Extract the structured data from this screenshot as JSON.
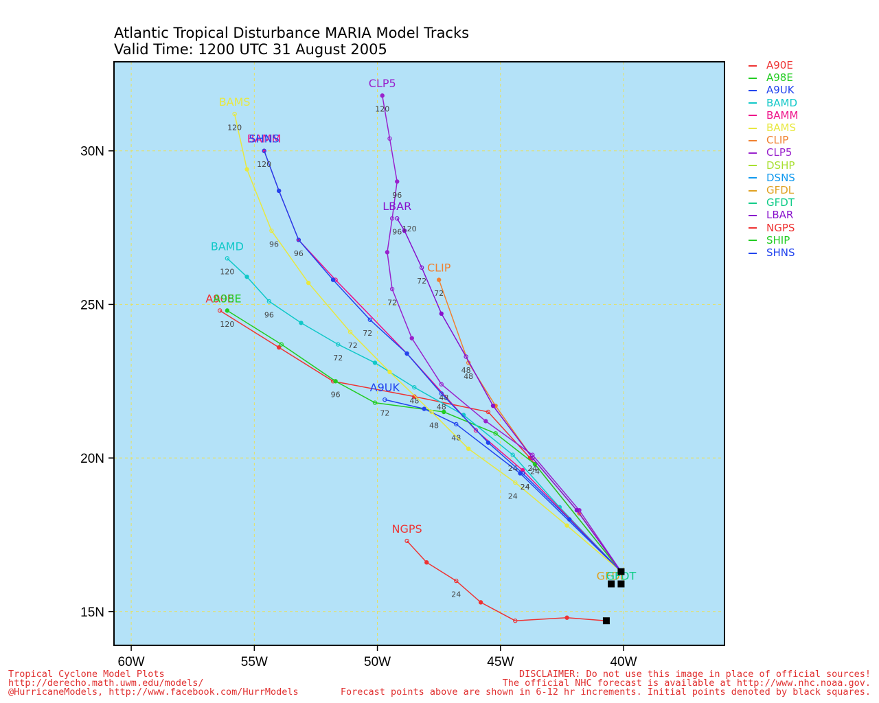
{
  "title": {
    "line1": "Atlantic Tropical Disturbance MARIA Model Tracks",
    "line2": "Valid Time: 1200 UTC 31 August 2005"
  },
  "chart_data": {
    "type": "map-tracks",
    "x_ticks": [
      {
        "lon": -60,
        "label": "60W"
      },
      {
        "lon": -55,
        "label": "55W"
      },
      {
        "lon": -50,
        "label": "50W"
      },
      {
        "lon": -45,
        "label": "45W"
      },
      {
        "lon": -40,
        "label": "40W"
      }
    ],
    "y_ticks": [
      {
        "lat": 15,
        "label": "15N"
      },
      {
        "lat": 20,
        "label": "20N"
      },
      {
        "lat": 25,
        "label": "25N"
      },
      {
        "lat": 30,
        "label": "30N"
      }
    ],
    "lon_range": [
      -60.7,
      -35.9
    ],
    "lat_range": [
      13.9,
      32.9
    ],
    "grid": true,
    "ocean_color": "#b4e2f8",
    "models": [
      {
        "name": "A90E",
        "color": "#ee3333",
        "points": [
          [
            -40.1,
            16.3
          ],
          [
            -43.8,
            20.0
          ],
          [
            -45.5,
            21.5
          ],
          [
            -48.5,
            22.0
          ],
          [
            -51.8,
            22.5
          ],
          [
            -54.0,
            23.6
          ],
          [
            -56.4,
            24.8
          ]
        ],
        "hour_labels": [],
        "end_label": "A90E"
      },
      {
        "name": "A98E",
        "color": "#22cc22",
        "points": [
          [
            -40.1,
            16.3
          ],
          [
            -43.6,
            19.8
          ],
          [
            -45.2,
            20.8
          ],
          [
            -47.3,
            21.5
          ],
          [
            -50.1,
            21.8
          ],
          [
            -51.7,
            22.5
          ],
          [
            -53.9,
            23.7
          ],
          [
            -56.1,
            24.8
          ]
        ],
        "hour_labels": [
          {
            "lon": -51.7,
            "lat": 22.2,
            "text": "96"
          },
          {
            "lon": -56.1,
            "lat": 24.5,
            "text": "120"
          }
        ],
        "end_label": "A98E"
      },
      {
        "name": "A9UK",
        "color": "#2244ee",
        "points": [
          [
            -40.1,
            16.3
          ],
          [
            -44.2,
            19.5
          ],
          [
            -46.8,
            21.1
          ],
          [
            -48.1,
            21.6
          ],
          [
            -49.7,
            21.9
          ]
        ],
        "hour_labels": [
          {
            "lon": -44.0,
            "lat": 19.2,
            "text": "24"
          },
          {
            "lon": -46.8,
            "lat": 20.8,
            "text": "48"
          },
          {
            "lon": -49.7,
            "lat": 21.6,
            "text": "72"
          }
        ],
        "end_label": "A9UK"
      },
      {
        "name": "BAMD",
        "color": "#11c8c8",
        "points": [
          [
            -40.1,
            16.3
          ],
          [
            -42.6,
            18.4
          ],
          [
            -44.5,
            20.1
          ],
          [
            -46.5,
            21.4
          ],
          [
            -48.5,
            22.3
          ],
          [
            -50.1,
            23.1
          ],
          [
            -51.6,
            23.7
          ],
          [
            -53.1,
            24.4
          ],
          [
            -54.4,
            25.1
          ],
          [
            -55.3,
            25.9
          ],
          [
            -56.1,
            26.5
          ]
        ],
        "hour_labels": [
          {
            "lon": -44.5,
            "lat": 19.8,
            "text": "24"
          },
          {
            "lon": -48.5,
            "lat": 22.0,
            "text": "48"
          },
          {
            "lon": -51.6,
            "lat": 23.4,
            "text": "72"
          },
          {
            "lon": -54.4,
            "lat": 24.8,
            "text": "96"
          },
          {
            "lon": -56.1,
            "lat": 26.2,
            "text": "120"
          }
        ],
        "end_label": "BAMD"
      },
      {
        "name": "BAMM",
        "color": "#ee1188",
        "points": [
          [
            -40.1,
            16.3
          ],
          [
            -44.1,
            19.6
          ],
          [
            -46.0,
            20.9
          ],
          [
            -48.8,
            23.4
          ],
          [
            -51.7,
            25.8
          ],
          [
            -53.2,
            27.1
          ],
          [
            -54.0,
            28.7
          ],
          [
            -54.6,
            30.0
          ]
        ],
        "hour_labels": [],
        "end_label": "BAMM"
      },
      {
        "name": "BAMS",
        "color": "#e8e840",
        "points": [
          [
            -40.1,
            16.3
          ],
          [
            -42.3,
            17.8
          ],
          [
            -44.4,
            19.2
          ],
          [
            -46.3,
            20.3
          ],
          [
            -47.8,
            21.5
          ],
          [
            -49.5,
            22.8
          ],
          [
            -51.1,
            24.1
          ],
          [
            -52.8,
            25.7
          ],
          [
            -54.3,
            27.4
          ],
          [
            -55.3,
            29.4
          ],
          [
            -55.8,
            31.2
          ]
        ],
        "hour_labels": [
          {
            "lon": -44.5,
            "lat": 18.9,
            "text": "24"
          },
          {
            "lon": -47.7,
            "lat": 21.2,
            "text": "48"
          },
          {
            "lon": -51.0,
            "lat": 23.8,
            "text": "72"
          },
          {
            "lon": -54.2,
            "lat": 27.1,
            "text": "96"
          },
          {
            "lon": -55.8,
            "lat": 30.9,
            "text": "120"
          }
        ],
        "end_label": "BAMS"
      },
      {
        "name": "CLIP",
        "color": "#f08030",
        "points": [
          [
            -40.1,
            16.3
          ],
          [
            -41.8,
            18.2
          ],
          [
            -43.7,
            20.0
          ],
          [
            -45.2,
            21.7
          ],
          [
            -46.3,
            23.1
          ],
          [
            -47.5,
            25.8
          ]
        ],
        "hour_labels": [
          {
            "lon": -43.6,
            "lat": 19.7,
            "text": "24"
          },
          {
            "lon": -46.3,
            "lat": 22.8,
            "text": "48"
          },
          {
            "lon": -47.5,
            "lat": 25.5,
            "text": "72"
          }
        ],
        "end_label": "CLIP"
      },
      {
        "name": "CLP5",
        "color": "#9922cc",
        "points": [
          [
            -40.1,
            16.3
          ],
          [
            -41.8,
            18.3
          ],
          [
            -43.7,
            20.1
          ],
          [
            -45.6,
            21.2
          ],
          [
            -47.4,
            22.4
          ],
          [
            -48.6,
            23.9
          ],
          [
            -49.4,
            25.5
          ],
          [
            -49.6,
            26.7
          ],
          [
            -49.4,
            27.8
          ],
          [
            -49.2,
            29.0
          ],
          [
            -49.5,
            30.4
          ],
          [
            -49.8,
            31.8
          ]
        ],
        "hour_labels": [
          {
            "lon": -43.7,
            "lat": 19.8,
            "text": "24"
          },
          {
            "lon": -47.3,
            "lat": 22.1,
            "text": "48"
          },
          {
            "lon": -49.4,
            "lat": 25.2,
            "text": "72"
          },
          {
            "lon": -49.2,
            "lat": 28.7,
            "text": "96"
          },
          {
            "lon": -49.8,
            "lat": 31.5,
            "text": "120"
          }
        ],
        "end_label": "CLP5"
      },
      {
        "name": "DSHP",
        "color": "#a8e030",
        "points": [],
        "hour_labels": [],
        "end_label": ""
      },
      {
        "name": "DSNS",
        "color": "#1199ee",
        "points": [],
        "hour_labels": [],
        "end_label": ""
      },
      {
        "name": "GFDL",
        "color": "#e0a020",
        "points": [
          [
            -40.5,
            15.9
          ]
        ],
        "hour_labels": [],
        "end_label": "GFDL"
      },
      {
        "name": "GFDT",
        "color": "#11cc88",
        "points": [
          [
            -40.1,
            15.9
          ]
        ],
        "hour_labels": [],
        "end_label": "GFDT"
      },
      {
        "name": "LBAR",
        "color": "#8811cc",
        "points": [
          [
            -40.1,
            16.3
          ],
          [
            -41.9,
            18.3
          ],
          [
            -43.7,
            20.0
          ],
          [
            -45.3,
            21.7
          ],
          [
            -46.4,
            23.3
          ],
          [
            -47.4,
            24.7
          ],
          [
            -48.2,
            26.2
          ],
          [
            -48.9,
            27.4
          ],
          [
            -49.2,
            27.8
          ]
        ],
        "hour_labels": [
          {
            "lon": -46.4,
            "lat": 23.0,
            "text": "48"
          },
          {
            "lon": -48.2,
            "lat": 25.9,
            "text": "72"
          },
          {
            "lon": -49.2,
            "lat": 27.5,
            "text": "96"
          },
          {
            "lon": -48.7,
            "lat": 27.6,
            "text": "120"
          }
        ],
        "end_label": "LBAR"
      },
      {
        "name": "NGPS",
        "color": "#ee3333",
        "points": [
          [
            -40.7,
            14.7
          ],
          [
            -42.3,
            14.8
          ],
          [
            -44.4,
            14.7
          ],
          [
            -45.8,
            15.3
          ],
          [
            -46.8,
            16.0
          ],
          [
            -48.0,
            16.6
          ],
          [
            -48.8,
            17.3
          ]
        ],
        "hour_labels": [
          {
            "lon": -46.8,
            "lat": 15.7,
            "text": "24"
          }
        ],
        "end_label": "NGPS"
      },
      {
        "name": "SHIP",
        "color": "#22cc22",
        "points": [],
        "hour_labels": [],
        "end_label": "SHIP"
      },
      {
        "name": "SHNS",
        "color": "#2244ee",
        "points": [
          [
            -40.1,
            16.3
          ],
          [
            -42.2,
            18.0
          ],
          [
            -44.1,
            19.5
          ],
          [
            -45.5,
            20.5
          ],
          [
            -47.4,
            22.1
          ],
          [
            -48.8,
            23.4
          ],
          [
            -50.3,
            24.5
          ],
          [
            -51.8,
            25.8
          ],
          [
            -53.2,
            27.1
          ],
          [
            -54.0,
            28.7
          ],
          [
            -54.6,
            30.0
          ]
        ],
        "hour_labels": [
          {
            "lon": -44.0,
            "lat": 19.2,
            "text": "24"
          },
          {
            "lon": -47.4,
            "lat": 21.8,
            "text": "48"
          },
          {
            "lon": -50.4,
            "lat": 24.2,
            "text": "72"
          },
          {
            "lon": -53.2,
            "lat": 26.8,
            "text": "96"
          },
          {
            "lon": -54.6,
            "lat": 29.7,
            "text": "120"
          }
        ],
        "end_label": "SHNS"
      }
    ],
    "initial_points": [
      [
        -40.1,
        16.3
      ],
      [
        -40.5,
        15.9
      ],
      [
        -40.1,
        15.9
      ],
      [
        -40.7,
        14.7
      ]
    ]
  },
  "footer": {
    "left_line1": "Tropical Cyclone Model Plots",
    "left_line2": "http://derecho.math.uwm.edu/models/",
    "left_line3": "@HurricaneModels, http://www.facebook.com/HurrModels",
    "right_line1": "DISCLAIMER: Do not use this image in place of official sources!",
    "right_line2": "The official NHC forecast is available at http://www.nhc.noaa.gov.",
    "right_line3": "Forecast points above are shown in 6-12 hr increments. Initial points denoted by black squares."
  }
}
